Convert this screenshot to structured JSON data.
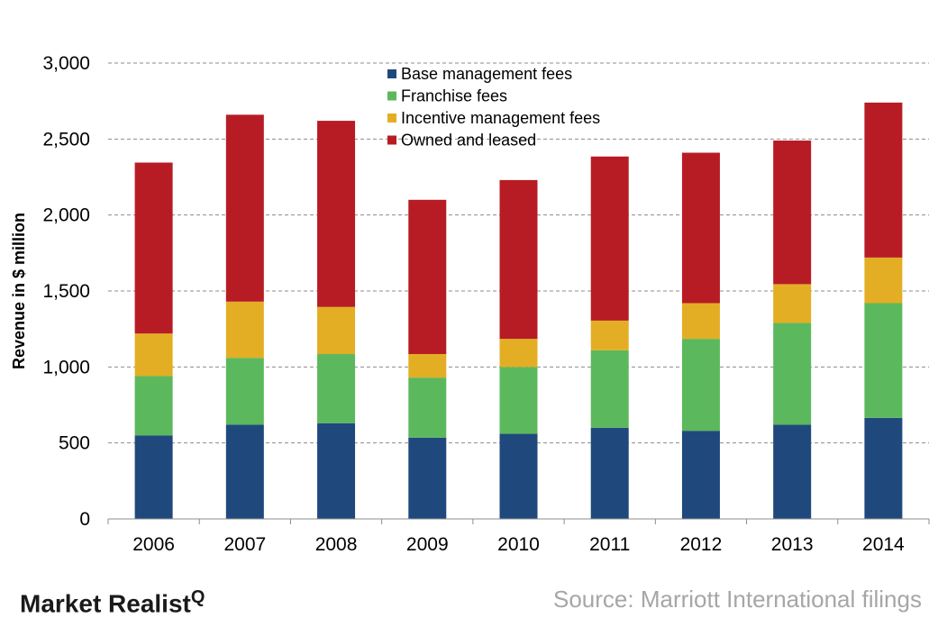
{
  "chart_data": {
    "type": "bar",
    "stacked": true,
    "title": "",
    "xlabel": "",
    "ylabel": "Revenue in $ million",
    "ylim": [
      0,
      3000
    ],
    "yticks": [
      0,
      500,
      1000,
      1500,
      2000,
      2500,
      3000
    ],
    "ytick_labels": [
      "0",
      "500",
      "1,000",
      "1,500",
      "2,000",
      "2,500",
      "3,000"
    ],
    "grid": true,
    "legend_position": "top-center",
    "categories": [
      "2006",
      "2007",
      "2008",
      "2009",
      "2010",
      "2011",
      "2012",
      "2013",
      "2014"
    ],
    "series": [
      {
        "name": "Base management fees",
        "color": "#1f497d",
        "values": [
          550,
          620,
          630,
          535,
          560,
          600,
          580,
          620,
          665
        ]
      },
      {
        "name": "Franchise fees",
        "color": "#5cb85c",
        "values": [
          390,
          440,
          455,
          395,
          440,
          510,
          605,
          670,
          755
        ]
      },
      {
        "name": "Incentive management fees",
        "color": "#e3ae24",
        "values": [
          280,
          370,
          310,
          155,
          185,
          195,
          235,
          255,
          300
        ]
      },
      {
        "name": "Owned and leased",
        "color": "#b71c24",
        "values": [
          1125,
          1230,
          1225,
          1015,
          1045,
          1080,
          990,
          945,
          1020
        ]
      }
    ]
  },
  "footer": {
    "brand": "Market Realist",
    "brand_mark": "Q",
    "source": "Source: Marriott International filings"
  }
}
